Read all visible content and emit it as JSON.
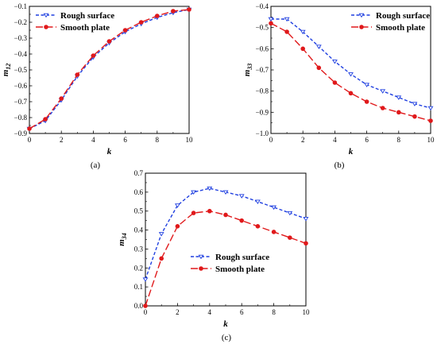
{
  "figure": {
    "background": "#ffffff",
    "series_styles": [
      {
        "color": "#1f3fe0",
        "dash": "short-dash",
        "marker": "open-triangle-down"
      },
      {
        "color": "#e0191b",
        "dash": "long-dash",
        "marker": "filled-circle"
      }
    ]
  },
  "chart_data": [
    {
      "type": "line",
      "caption": "(a)",
      "xlabel": "k",
      "ylabel": {
        "main": "m",
        "sub": "12"
      },
      "xlim": [
        0,
        10
      ],
      "ylim": [
        -0.9,
        -0.1
      ],
      "xticks": [
        0,
        2,
        4,
        6,
        8,
        10
      ],
      "yticks": [
        -0.9,
        -0.8,
        -0.7,
        -0.6,
        -0.5,
        -0.4,
        -0.3,
        -0.2,
        -0.1
      ],
      "x": [
        0,
        1,
        2,
        3,
        4,
        5,
        6,
        7,
        8,
        9,
        10
      ],
      "legend": "top-left",
      "series": [
        {
          "name": "Rough surface",
          "values": [
            -0.87,
            -0.82,
            -0.69,
            -0.54,
            -0.42,
            -0.33,
            -0.26,
            -0.21,
            -0.17,
            -0.14,
            -0.12
          ]
        },
        {
          "name": "Smooth plate",
          "values": [
            -0.87,
            -0.81,
            -0.68,
            -0.53,
            -0.41,
            -0.32,
            -0.25,
            -0.2,
            -0.16,
            -0.13,
            -0.12
          ]
        }
      ]
    },
    {
      "type": "line",
      "caption": "(b)",
      "xlabel": "k",
      "ylabel": {
        "main": "m",
        "sub": "33"
      },
      "xlim": [
        0,
        10
      ],
      "ylim": [
        -1.0,
        -0.4
      ],
      "xticks": [
        0,
        2,
        4,
        6,
        8,
        10
      ],
      "yticks": [
        -1.0,
        -0.9,
        -0.8,
        -0.7,
        -0.6,
        -0.5,
        -0.4
      ],
      "x": [
        0,
        1,
        2,
        3,
        4,
        5,
        6,
        7,
        8,
        9,
        10
      ],
      "legend": "top-right",
      "series": [
        {
          "name": "Rough surface",
          "values": [
            -0.46,
            -0.46,
            -0.52,
            -0.59,
            -0.66,
            -0.72,
            -0.77,
            -0.8,
            -0.83,
            -0.86,
            -0.88
          ]
        },
        {
          "name": "Smooth plate",
          "values": [
            -0.48,
            -0.52,
            -0.6,
            -0.69,
            -0.76,
            -0.81,
            -0.85,
            -0.88,
            -0.9,
            -0.92,
            -0.94
          ]
        }
      ]
    },
    {
      "type": "line",
      "caption": "(c)",
      "xlabel": "k",
      "ylabel": {
        "main": "m",
        "sub": "34"
      },
      "xlim": [
        0,
        10
      ],
      "ylim": [
        0.0,
        0.7
      ],
      "xticks": [
        0,
        2,
        4,
        6,
        8,
        10
      ],
      "yticks": [
        0.0,
        0.1,
        0.2,
        0.3,
        0.4,
        0.5,
        0.6,
        0.7
      ],
      "x": [
        0,
        1,
        2,
        3,
        4,
        5,
        6,
        7,
        8,
        9,
        10
      ],
      "legend": "lower-right",
      "series": [
        {
          "name": "Rough surface",
          "values": [
            0.14,
            0.38,
            0.53,
            0.6,
            0.62,
            0.6,
            0.58,
            0.55,
            0.52,
            0.49,
            0.46
          ]
        },
        {
          "name": "Smooth plate",
          "values": [
            0.0,
            0.25,
            0.42,
            0.49,
            0.5,
            0.48,
            0.45,
            0.42,
            0.39,
            0.36,
            0.33
          ]
        }
      ]
    }
  ]
}
